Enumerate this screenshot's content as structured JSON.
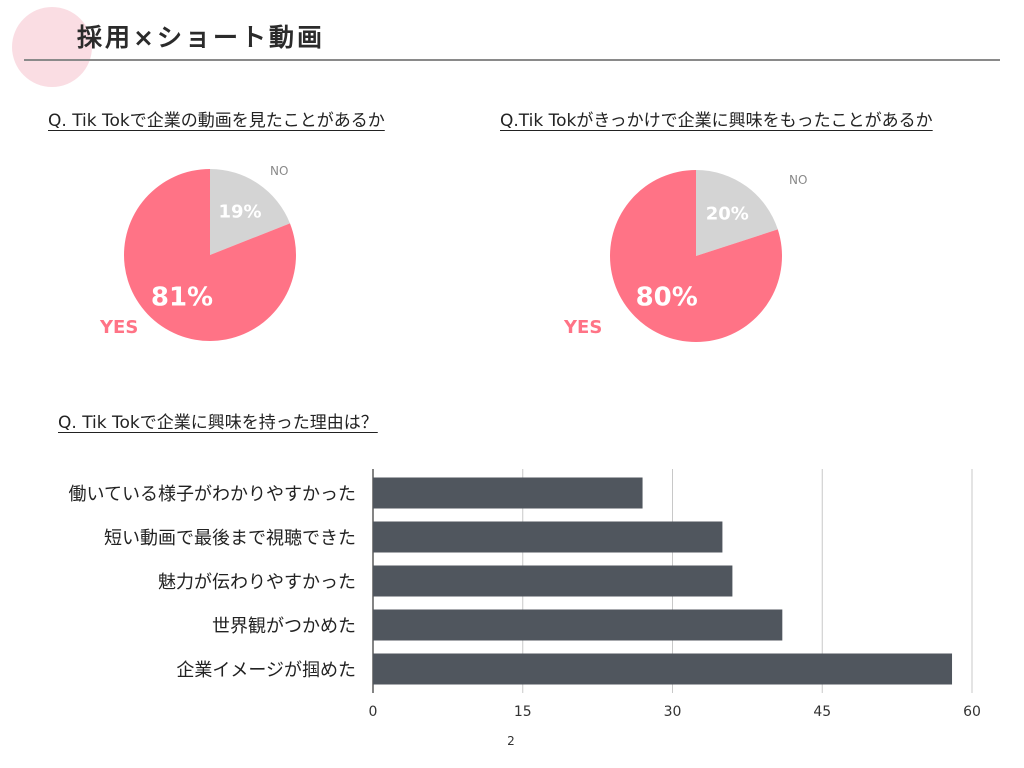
{
  "slide": {
    "title": "採用×ショート動画",
    "page_number": "2"
  },
  "colors": {
    "accent": "#ff7386",
    "accent_light": "#fadde3",
    "gray_slice": "#d4d4d4",
    "bar": "#50565e",
    "grid": "#c8c8c8"
  },
  "chart_data": [
    {
      "type": "pie",
      "title": "Q. Tik Tokで企業の動画を見たことがあるか",
      "labels": [
        "YES",
        "NO"
      ],
      "values": [
        81,
        19
      ],
      "value_labels": [
        "81%",
        "19%"
      ],
      "colors": [
        "#ff7386",
        "#d4d4d4"
      ]
    },
    {
      "type": "pie",
      "title": "Q.Tik Tokがきっかけで企業に興味をもったことがあるか",
      "labels": [
        "YES",
        "NO"
      ],
      "values": [
        80,
        20
      ],
      "value_labels": [
        "80%",
        "20%"
      ],
      "colors": [
        "#ff7386",
        "#d4d4d4"
      ]
    },
    {
      "type": "bar",
      "orientation": "horizontal",
      "title": "Q. Tik Tokで企業に興味を持った理由は？",
      "categories": [
        "働いている様子がわかりやすかった",
        "短い動画で最後まで視聴できた",
        "魅力が伝わりやすかった",
        "世界観がつかめた",
        "企業イメージが掴めた"
      ],
      "values": [
        27,
        35,
        36,
        41,
        58
      ],
      "xlim": [
        0,
        60
      ],
      "xticks": [
        0,
        15,
        30,
        45,
        60
      ],
      "grid": true,
      "color": "#50565e"
    }
  ]
}
